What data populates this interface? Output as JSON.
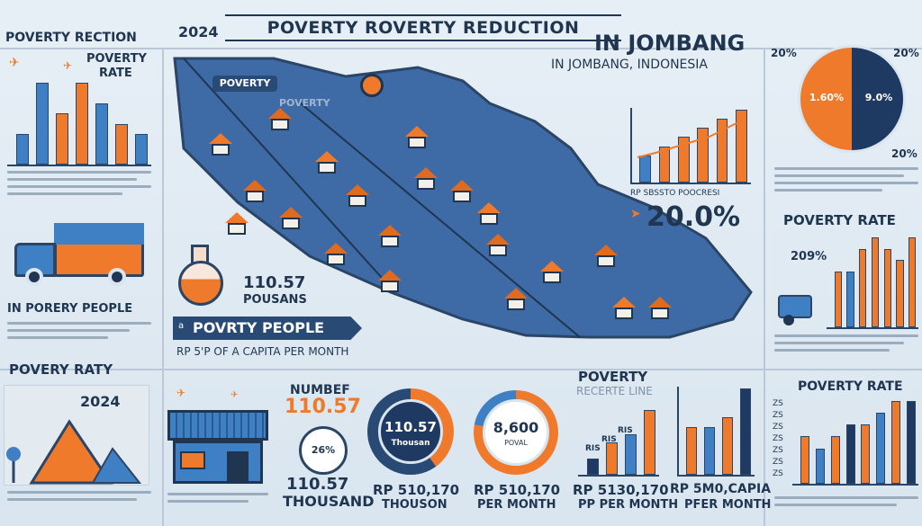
{
  "header": {
    "title": "POVERTY ROVERTY REDUCTION",
    "year": "2024",
    "location_big": "IN JOMBANG",
    "location_sub": "IN JOMBANG, INDONESIA"
  },
  "left_panel": {
    "heading": "POVERTY RECTION",
    "rate_label_1": "POVERTY",
    "rate_label_2": "RATE",
    "caption": "IN PORERY PEOPLE",
    "bottom_heading": "POVERY RATY",
    "bottom_year": "2024"
  },
  "map": {
    "label": "POVERTY",
    "label2": "POVERTY"
  },
  "center_info": {
    "value": "110.57",
    "unit": "POUSANS",
    "banner": "POVRTY PEOPLE",
    "banner_prefix": "a",
    "caption": "RP 5'P OF A CAPITA PER MONTH"
  },
  "right_panel": {
    "pie_top_left": "20%",
    "pie_top_right": "20%",
    "pie_bottom_right": "20%",
    "pie_orange_label": "1.60%",
    "pie_navy_label": "9.0%",
    "chart_caption": "RP SBSSTO POOCRESI",
    "big_percent": "20.0%",
    "rate_heading": "POVERTY RATE",
    "rate_value": "209%",
    "bottom_heading": "POVERTY RATE",
    "axis_ticks": [
      "ZS",
      "ZS",
      "ZS",
      "ZS",
      "ZS",
      "ZS",
      "ZS"
    ]
  },
  "bottom": {
    "number_label": "NUMBEF",
    "number_value": "110.57",
    "house_value": "26%",
    "thousand_value": "110.57",
    "thousand_label": "THOUSAND",
    "donut1_value": "110.57",
    "donut1_unit": "Thousan",
    "donut1_caption_1": "RP 510,170",
    "donut1_caption_2": "THOUSON",
    "donut2_value": "8,600",
    "donut2_unit": "POVAL",
    "donut2_caption_1": "RP 510,170",
    "donut2_caption_2": "PER MONTH",
    "line_heading_1": "POVERTY",
    "line_heading_2": "RECERTE LINE",
    "line_caption_1": "RP 5130,170",
    "line_caption_2": "PP PER MONTH",
    "last_caption_1": "RP 5M0,CAPIA",
    "last_caption_2": "PFER MONTH",
    "bar_tags": [
      "RIS",
      "RIS",
      "RIS"
    ]
  },
  "chart_data": [
    {
      "type": "bar",
      "values": [
        3,
        8,
        5,
        8,
        6,
        4,
        3
      ],
      "colors": [
        "blue",
        "blue",
        "orange",
        "orange",
        "blue",
        "orange",
        "blue"
      ]
    },
    {
      "type": "bar",
      "values": [
        3,
        4,
        5,
        6,
        7,
        8
      ],
      "colors": [
        "blue",
        "orange",
        "orange",
        "orange",
        "orange",
        "orange"
      ]
    },
    {
      "type": "bar",
      "values": [
        5,
        5,
        7,
        8,
        7,
        6,
        8
      ],
      "colors": [
        "orange",
        "blue",
        "orange",
        "orange",
        "orange",
        "orange",
        "orange"
      ]
    },
    {
      "type": "bar",
      "values": [
        4,
        3,
        4,
        5,
        5,
        6,
        7,
        7
      ],
      "colors": [
        "orange",
        "blue",
        "orange",
        "navy",
        "orange",
        "blue",
        "orange",
        "navy"
      ]
    },
    {
      "type": "bar",
      "values": [
        2,
        4,
        5,
        8
      ],
      "colors": [
        "navy",
        "orange",
        "blue",
        "orange"
      ]
    },
    {
      "type": "bar",
      "values": [
        5,
        5,
        6,
        9
      ],
      "colors": [
        "orange",
        "blue",
        "orange",
        "navy"
      ]
    },
    {
      "type": "pie",
      "values": [
        50,
        50
      ],
      "colors": [
        "#ef7a2b",
        "#1f3a62"
      ]
    }
  ]
}
